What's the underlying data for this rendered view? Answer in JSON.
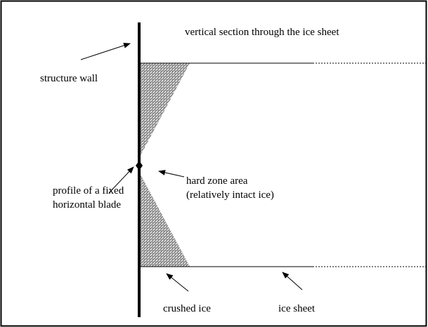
{
  "title": "vertical section through the ice sheet",
  "labels": {
    "structure_wall": "structure wall",
    "blade": [
      "profile of a fixed",
      "horizontal blade"
    ],
    "hard_zone": [
      "hard zone area",
      "(relatively intact ice)"
    ],
    "crushed_ice": "crushed ice",
    "ice_sheet": "ice sheet"
  }
}
